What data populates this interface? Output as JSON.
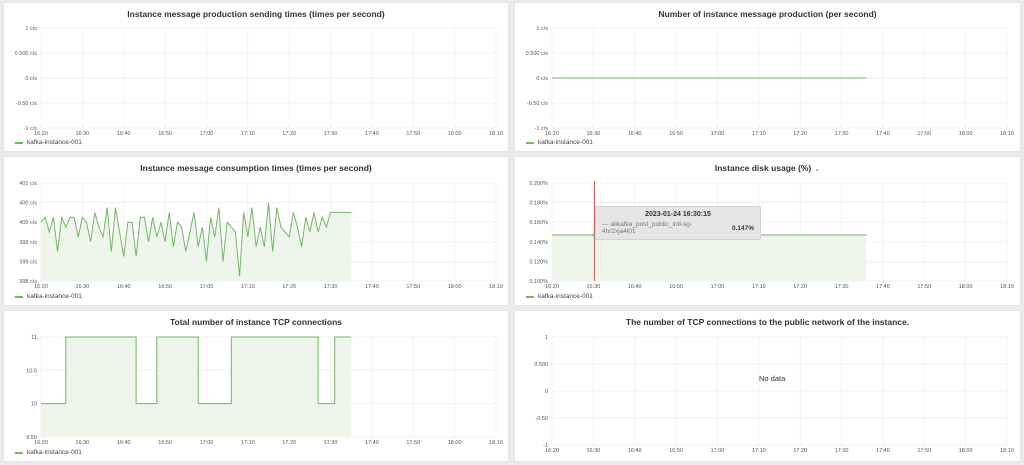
{
  "legend_label": "kafka-instance-001",
  "series_color": "#73b766",
  "fill_color": "#eef5ea",
  "panels": [
    {
      "title": "Instance message production sending times (times per second)",
      "has_menu": false,
      "chart_data": {
        "type": "line",
        "y_ticks": [
          "1 c/s",
          "0.500 c/s",
          "0 c/s",
          "-0.50 c/s",
          "-1 c/s"
        ],
        "y_values": [
          1,
          0.5,
          0,
          -0.5,
          -1
        ],
        "x_ticks": [
          "16:20",
          "16:30",
          "16:40",
          "16:50",
          "17:00",
          "17:10",
          "17:20",
          "17:30",
          "17:40",
          "17:50",
          "18:00",
          "18:10"
        ],
        "series": []
      }
    },
    {
      "title": "Number of instance message production (per second)",
      "has_menu": false,
      "chart_data": {
        "type": "line",
        "y_ticks": [
          "1 c/s",
          "0.500 c/s",
          "0 c/s",
          "-0.50 c/s",
          "-1 c/s"
        ],
        "y_values": [
          1,
          0.5,
          0,
          -0.5,
          -1
        ],
        "x_ticks": [
          "16:20",
          "16:30",
          "16:40",
          "16:50",
          "17:00",
          "17:10",
          "17:20",
          "17:30",
          "17:40",
          "17:50",
          "18:00",
          "18:10"
        ],
        "series": [
          {
            "name": "kafka-instance-001",
            "fill": false,
            "x": [
              "16:20",
              "17:36"
            ],
            "y": [
              0,
              0
            ]
          }
        ]
      }
    },
    {
      "title": "Instance message consumption times (times per second)",
      "has_menu": false,
      "chart_data": {
        "type": "area",
        "y_ticks": [
          "401 c/s",
          "400 c/s",
          "400 c/s",
          "399 c/s",
          "399 c/s",
          "398 c/s"
        ],
        "y_values": [
          400.9,
          400.5,
          400.1,
          399.7,
          399.3,
          398.9
        ],
        "x_ticks": [
          "16:20",
          "16:30",
          "16:40",
          "16:50",
          "17:00",
          "17:10",
          "17:20",
          "17:30",
          "17:40",
          "17:50",
          "18:00",
          "18:10"
        ],
        "series": [
          {
            "name": "kafka-instance-001",
            "fill": true,
            "x": [
              "16:20",
              "16:21",
              "16:22",
              "16:23",
              "16:24",
              "16:25",
              "16:26",
              "16:27",
              "16:28",
              "16:29",
              "16:30",
              "16:31",
              "16:32",
              "16:33",
              "16:34",
              "16:35",
              "16:36",
              "16:37",
              "16:38",
              "16:39",
              "16:40",
              "16:41",
              "16:42",
              "16:43",
              "16:44",
              "16:45",
              "16:46",
              "16:47",
              "16:48",
              "16:49",
              "16:50",
              "16:51",
              "16:52",
              "16:53",
              "16:54",
              "16:55",
              "16:56",
              "16:57",
              "16:58",
              "16:59",
              "17:00",
              "17:01",
              "17:02",
              "17:03",
              "17:04",
              "17:05",
              "17:06",
              "17:07",
              "17:08",
              "17:09",
              "17:10",
              "17:11",
              "17:12",
              "17:13",
              "17:14",
              "17:15",
              "17:16",
              "17:17",
              "17:18",
              "17:19",
              "17:20",
              "17:21",
              "17:22",
              "17:23",
              "17:24",
              "17:25",
              "17:26",
              "17:27",
              "17:28",
              "17:29",
              "17:30",
              "17:31",
              "17:32",
              "17:33",
              "17:34",
              "17:35"
            ],
            "y": [
              400.1,
              400.2,
              399.9,
              400.2,
              399.5,
              400.2,
              400.0,
              400.2,
              400.2,
              399.8,
              400.2,
              400.1,
              399.7,
              400.3,
              400.0,
              399.8,
              400.4,
              399.5,
              400.4,
              399.9,
              399.4,
              400.1,
              400.1,
              399.4,
              400.2,
              400.2,
              399.7,
              400.2,
              399.8,
              400.1,
              399.7,
              400.3,
              399.6,
              400.1,
              400.0,
              399.5,
              399.9,
              400.3,
              399.6,
              400.0,
              399.3,
              400.2,
              399.8,
              400.4,
              399.3,
              400.1,
              400.0,
              399.9,
              399.0,
              400.3,
              399.8,
              400.4,
              399.6,
              400.0,
              399.6,
              400.5,
              399.5,
              400.4,
              400.0,
              399.9,
              399.8,
              400.3,
              400.0,
              399.6,
              400.2,
              399.9,
              400.3,
              399.9,
              400.2,
              400.0,
              400.3,
              400.3,
              400.3,
              400.3,
              400.3,
              400.3
            ]
          }
        ]
      }
    },
    {
      "title": "Instance disk usage (%)",
      "has_menu": true,
      "chart_data": {
        "type": "area",
        "y_ticks": [
          "0.200%",
          "0.180%",
          "0.160%",
          "0.140%",
          "0.120%",
          "0.100%"
        ],
        "y_values": [
          0.2,
          0.18,
          0.16,
          0.14,
          0.12,
          0.1
        ],
        "x_ticks": [
          "16:20",
          "16:30",
          "16:40",
          "16:50",
          "17:00",
          "17:10",
          "17:20",
          "17:30",
          "17:40",
          "17:50",
          "18:00",
          "18:10"
        ],
        "series": [
          {
            "name": "kafka-instance-001",
            "fill": true,
            "x": [
              "16:20",
              "17:36"
            ],
            "y": [
              0.147,
              0.147
            ]
          }
        ],
        "cursor_x": "16:30:15",
        "tooltip": {
          "time": "2023-01-24 16:30:15",
          "series": "alikafka_post_public_intl-sg-4hr2xja4l01",
          "value": "0.147%"
        }
      }
    },
    {
      "title": "Total number of instance TCP connections",
      "has_menu": false,
      "chart_data": {
        "type": "area",
        "y_ticks": [
          "11",
          "10.5",
          "10",
          "9.50"
        ],
        "y_values": [
          11,
          10.5,
          10,
          9.5
        ],
        "x_ticks": [
          "16:20",
          "16:30",
          "16:40",
          "16:50",
          "17:00",
          "17:10",
          "17:20",
          "17:30",
          "17:40",
          "17:50",
          "18:00",
          "18:10"
        ],
        "series": [
          {
            "name": "kafka-instance-001",
            "fill": true,
            "step": true,
            "x": [
              "16:20",
              "16:26",
              "16:43",
              "16:48",
              "16:58",
              "17:06",
              "17:27",
              "17:31",
              "17:35"
            ],
            "y": [
              10,
              11,
              10,
              11,
              10,
              11,
              10,
              11,
              11
            ]
          }
        ]
      }
    },
    {
      "title": "The number of TCP connections to the public network of the instance.",
      "has_menu": false,
      "nodata": "No data",
      "chart_data": {
        "type": "line",
        "y_ticks": [
          "1",
          "0.500",
          "0",
          "-0.50",
          "-1"
        ],
        "y_values": [
          1,
          0.5,
          0,
          -0.5,
          -1
        ],
        "x_ticks": [
          "16:20",
          "16:30",
          "16:40",
          "16:50",
          "17:00",
          "17:10",
          "17:20",
          "17:30",
          "17:40",
          "17:50",
          "18:00",
          "18:10"
        ],
        "series": []
      }
    }
  ]
}
